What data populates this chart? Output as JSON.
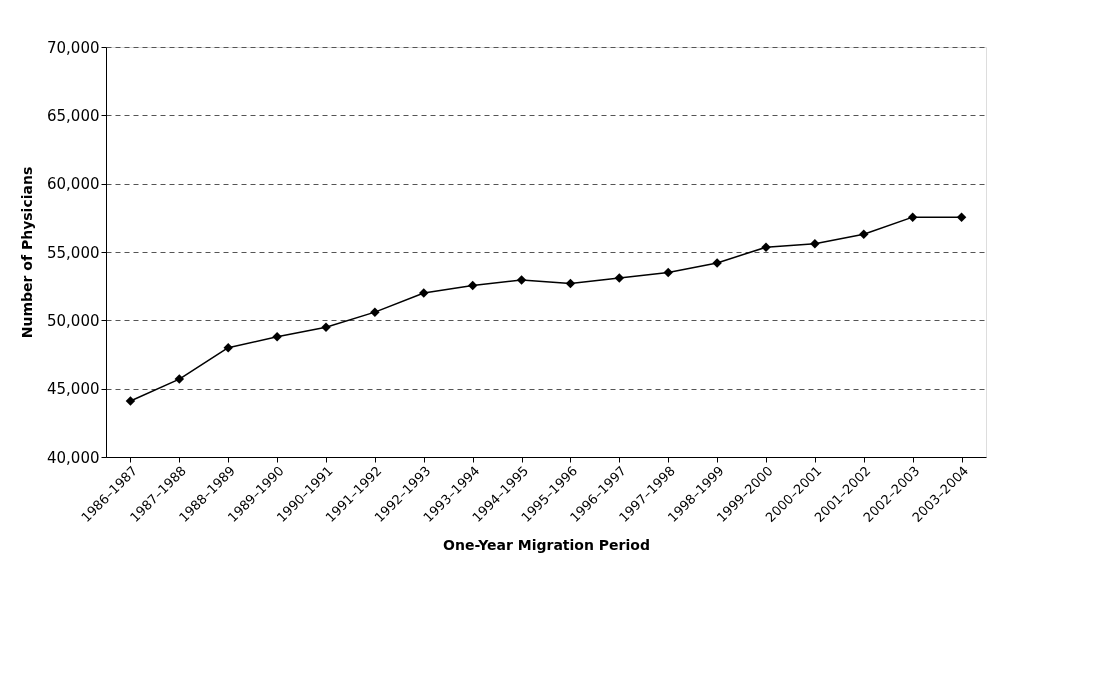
{
  "chart_data": {
    "type": "line",
    "xlabel": "One-Year Migration Period",
    "ylabel": "Number of Physicians",
    "categories": [
      "1986–1987",
      "1987–1988",
      "1988–1989",
      "1989–1990",
      "1990–1991",
      "1991–1992",
      "1992–1993",
      "1993–1994",
      "1994–1995",
      "1995–1996",
      "1996–1997",
      "1997–1998",
      "1998–1999",
      "1999–2000",
      "2000–2001",
      "2001–2002",
      "2002–2003",
      "2003–2004"
    ],
    "series": [
      {
        "color": "#000000",
        "values": [
          44100,
          45700,
          48000,
          48800,
          49500,
          50600,
          52000,
          52550,
          52950,
          52700,
          53100,
          53500,
          54200,
          55350,
          55600,
          56300,
          57550,
          57550
        ]
      }
    ],
    "ylim": [
      40000,
      70000
    ],
    "yticks": [
      {
        "value": 40000,
        "label": "40,000"
      },
      {
        "value": 45000,
        "label": "45,000"
      },
      {
        "value": 50000,
        "label": "50,000"
      },
      {
        "value": 55000,
        "label": "55,000"
      },
      {
        "value": 60000,
        "label": "60,000"
      },
      {
        "value": 65000,
        "label": "65,000"
      },
      {
        "value": 70000,
        "label": "70,000"
      }
    ],
    "grid": "y",
    "marker": "diamond",
    "line_style": "solid",
    "legend": false
  }
}
